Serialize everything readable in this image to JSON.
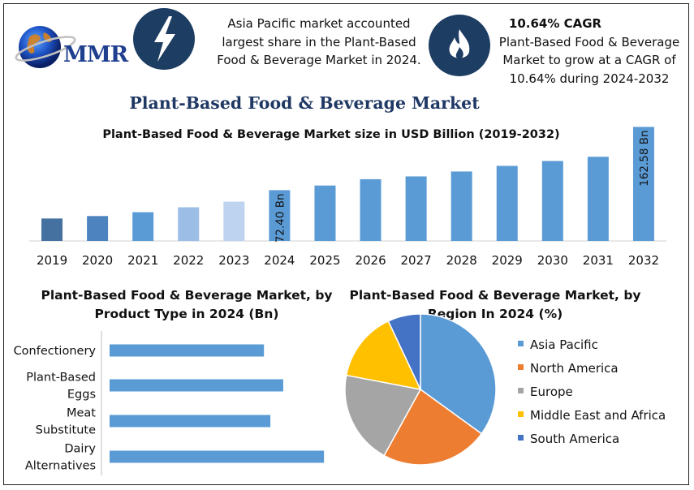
{
  "logo": {
    "text": "MMR"
  },
  "header": {
    "info_left": {
      "icon": "lightning-bolt-icon",
      "line1": "Asia Pacific market accounted",
      "line2": "largest share in the Plant-Based",
      "line3": "Food & Beverage Market in 2024."
    },
    "info_right": {
      "icon": "flame-icon",
      "title": "10.64% CAGR",
      "line1": "Plant-Based Food & Beverage",
      "line2": "Market to grow at a CAGR of",
      "line3": "10.64% during 2024-2032"
    }
  },
  "main_title": "Plant-Based Food & Beverage Market",
  "chart_data": [
    {
      "type": "bar",
      "title": "Plant-Based Food & Beverage Market size in USD Billion (2019-2032)",
      "categories": [
        "2019",
        "2020",
        "2021",
        "2022",
        "2023",
        "2024",
        "2025",
        "2026",
        "2027",
        "2028",
        "2029",
        "2030",
        "2031",
        "2032"
      ],
      "values": [
        32,
        35.5,
        41,
        48,
        56,
        72.4,
        79,
        88,
        92,
        99,
        107,
        114,
        120,
        162.58
      ],
      "colors": [
        "#44719f",
        "#4d84c0",
        "#5b9bd5",
        "#9bbde6",
        "#bdd3ef",
        "#5b9bd5",
        "#5b9bd5",
        "#5b9bd5",
        "#5b9bd5",
        "#5b9bd5",
        "#5b9bd5",
        "#5b9bd5",
        "#5b9bd5",
        "#5b9bd5"
      ],
      "data_labels": [
        {
          "category": "2024",
          "text": "72.40 Bn"
        },
        {
          "category": "2032",
          "text": "162.58 Bn"
        }
      ],
      "ylim": [
        0,
        170
      ],
      "grid": false
    },
    {
      "type": "bar",
      "orientation": "horizontal",
      "title": "Plant-Based Food & Beverage Market, by Product Type in 2024 (Bn)",
      "title_line1": "Plant-Based Food & Beverage Market, by",
      "title_line2": "Product Type in 2024 (Bn)",
      "categories": [
        "Confectionery",
        "Plant-Based Eggs",
        "Meat Substitute",
        "Dairy Alternatives"
      ],
      "category_lines": [
        [
          "Confectionery"
        ],
        [
          "Plant-Based",
          "Eggs"
        ],
        [
          "Meat",
          "Substitute"
        ],
        [
          "Dairy",
          "Alternatives"
        ]
      ],
      "values": [
        7.2,
        8.1,
        7.5,
        10
      ],
      "xlim": [
        0,
        10.6
      ],
      "color": "#5b9bd5",
      "grid": false
    },
    {
      "type": "pie",
      "title": "Plant-Based Food & Beverage Market, by Region In 2024 (%)",
      "title_line1": "Plant-Based Food & Beverage Market, by",
      "title_line2": "Region In 2024 (%)",
      "labels": [
        "Asia Pacific",
        "North America",
        "Europe",
        "Middle East and Africa",
        "South America"
      ],
      "values": [
        35,
        23,
        20,
        15,
        7
      ],
      "colors": [
        "#5b9bd5",
        "#ed7d31",
        "#a5a5a5",
        "#ffc000",
        "#4472c4"
      ],
      "legend_position": "right"
    }
  ]
}
